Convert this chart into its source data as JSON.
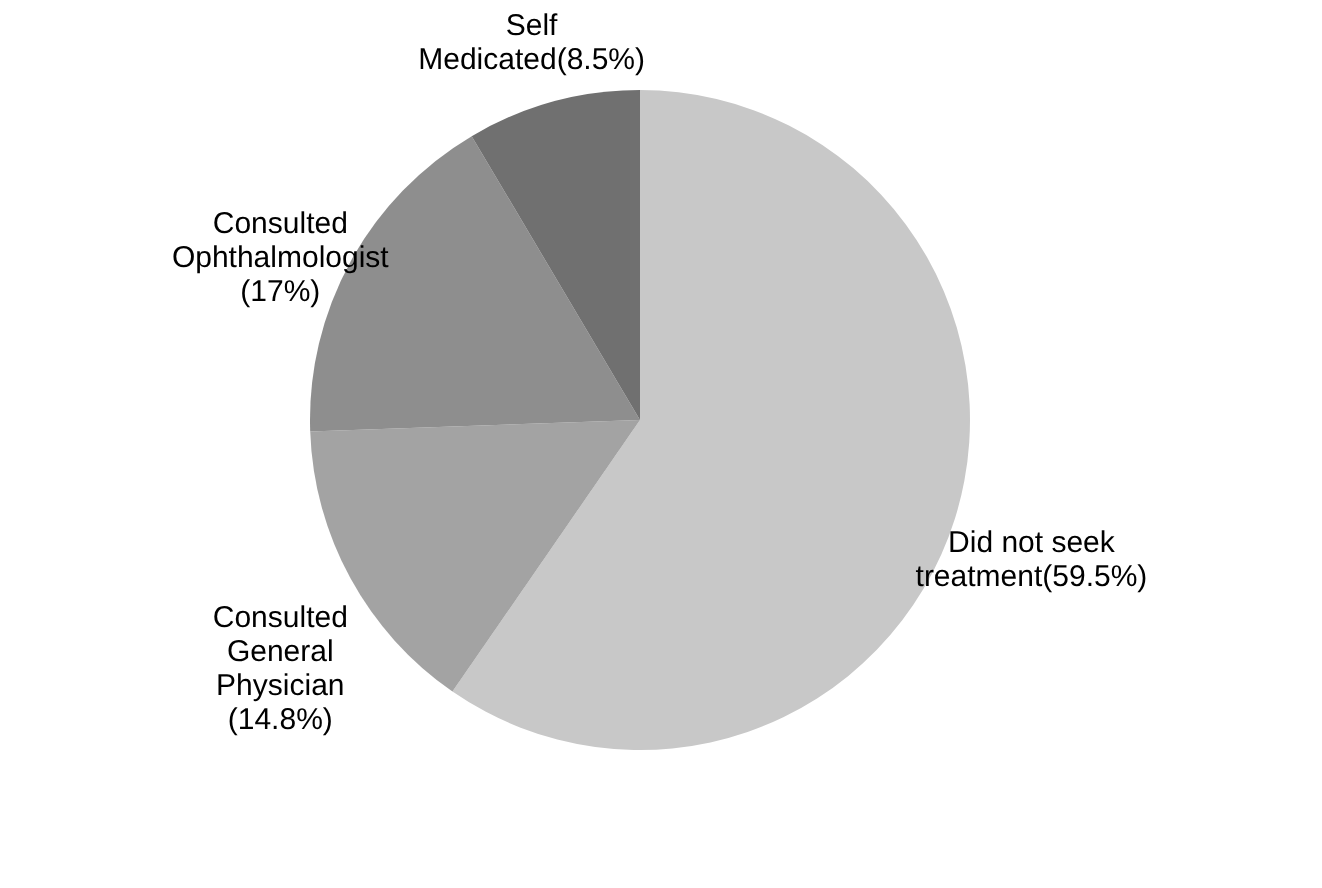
{
  "chart_data": {
    "type": "pie",
    "categories": [
      "Did not seek treatment(59.5%)",
      "Consulted General Physician (14.8%)",
      "Consulted Ophthalmologist (17%)",
      "Self Medicated(8.5%)"
    ],
    "values": [
      59.5,
      14.8,
      17,
      8.5
    ],
    "colors": [
      "#c8c8c8",
      "#a3a3a3",
      "#8e8e8e",
      "#707070"
    ],
    "legend": false
  }
}
